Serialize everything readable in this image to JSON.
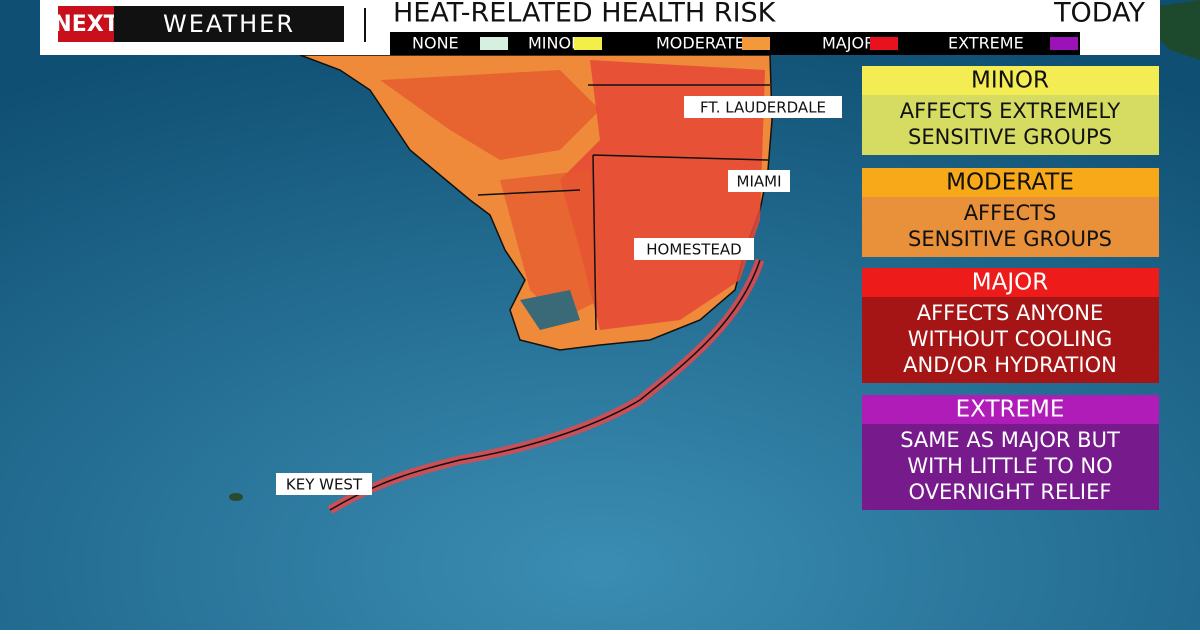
{
  "header": {
    "brand": "NEXT",
    "brand_sub": "WEATHER",
    "title": "HEAT-RELATED HEALTH RISK",
    "period": "TODAY"
  },
  "legend": [
    {
      "label": "NONE",
      "color": "#d6efe0"
    },
    {
      "label": "MINOR",
      "color": "#f4ee48"
    },
    {
      "label": "MODERATE",
      "color": "#f4993a"
    },
    {
      "label": "MAJOR",
      "color": "#e8121e"
    },
    {
      "label": "EXTREME",
      "color": "#9a12b8"
    }
  ],
  "cities": [
    "FT. LAUDERDALE",
    "MIAMI",
    "HOMESTEAD",
    "KEY WEST"
  ],
  "panels": [
    {
      "title": "MINOR",
      "title_color": "#f3ec52",
      "body_color": "#d6dc62",
      "lines": [
        "AFFECTS  EXTREMELY",
        "SENSITIVE GROUPS"
      ]
    },
    {
      "title": "MODERATE",
      "title_color": "#f8a91a",
      "body_color": "#e8903a",
      "lines": [
        "AFFECTS",
        "SENSITIVE GROUPS"
      ]
    },
    {
      "title": "MAJOR",
      "title_color": "#ee1b1b",
      "body_color": "#a51515",
      "lines": [
        "AFFECTS ANYONE",
        "WITHOUT COOLING",
        "AND/OR HYDRATION"
      ]
    },
    {
      "title": "EXTREME",
      "title_color": "#b01cb8",
      "body_color": "#761a8c",
      "lines": [
        "SAME AS MAJOR BUT",
        "WITH LITTLE TO NO",
        "OVERNIGHT RELIEF"
      ]
    }
  ]
}
